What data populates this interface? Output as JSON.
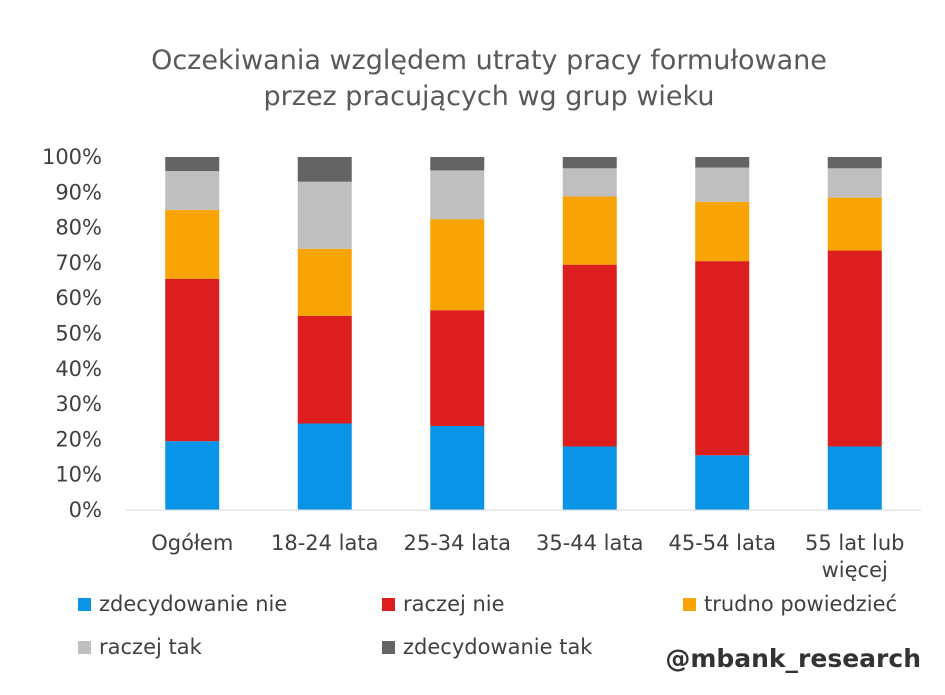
{
  "chart_data": {
    "type": "bar",
    "stacked": true,
    "percent_stacked": true,
    "title": "Oczekiwania względem utraty pracy formułowane przez pracujących wg grup wieku",
    "title_lines": [
      "Oczekiwania względem utraty pracy formułowane",
      "przez pracujących wg grup wieku"
    ],
    "categories": [
      "Ogółem",
      "18-24 lata",
      "25-34 lata",
      "35-44 lata",
      "45-54 lata",
      "55 lat lub więcej"
    ],
    "category_label_lines": [
      [
        "Ogółem"
      ],
      [
        "18-24 lata"
      ],
      [
        "25-34 lata"
      ],
      [
        "35-44 lata"
      ],
      [
        "45-54 lata"
      ],
      [
        "55 lat lub",
        "więcej"
      ]
    ],
    "xlabel": "",
    "ylabel": "",
    "ylim": [
      0,
      100
    ],
    "yticks": [
      "0%",
      "10%",
      "20%",
      "30%",
      "40%",
      "50%",
      "60%",
      "70%",
      "80%",
      "90%",
      "100%"
    ],
    "grid": false,
    "legend_position": "bottom",
    "series": [
      {
        "name": "zdecydowanie nie",
        "color": "#0A94E8",
        "values": [
          19.5,
          24.5,
          23.8,
          18.0,
          15.5,
          18.0
        ]
      },
      {
        "name": "raczej nie",
        "color": "#DC1E1E",
        "values": [
          46.0,
          30.5,
          32.8,
          51.5,
          55.0,
          55.5
        ]
      },
      {
        "name": "trudno powiedzieć",
        "color": "#F8A404",
        "values": [
          19.5,
          19.0,
          25.8,
          19.3,
          16.8,
          15.0
        ]
      },
      {
        "name": "raczej tak",
        "color": "#BFBFBF",
        "values": [
          11.0,
          19.0,
          13.8,
          8.0,
          9.7,
          8.3
        ]
      },
      {
        "name": "zdecydowanie tak",
        "color": "#646464",
        "values": [
          4.0,
          7.0,
          3.8,
          3.2,
          3.0,
          3.2
        ]
      }
    ]
  },
  "watermark": "@mbank_research"
}
